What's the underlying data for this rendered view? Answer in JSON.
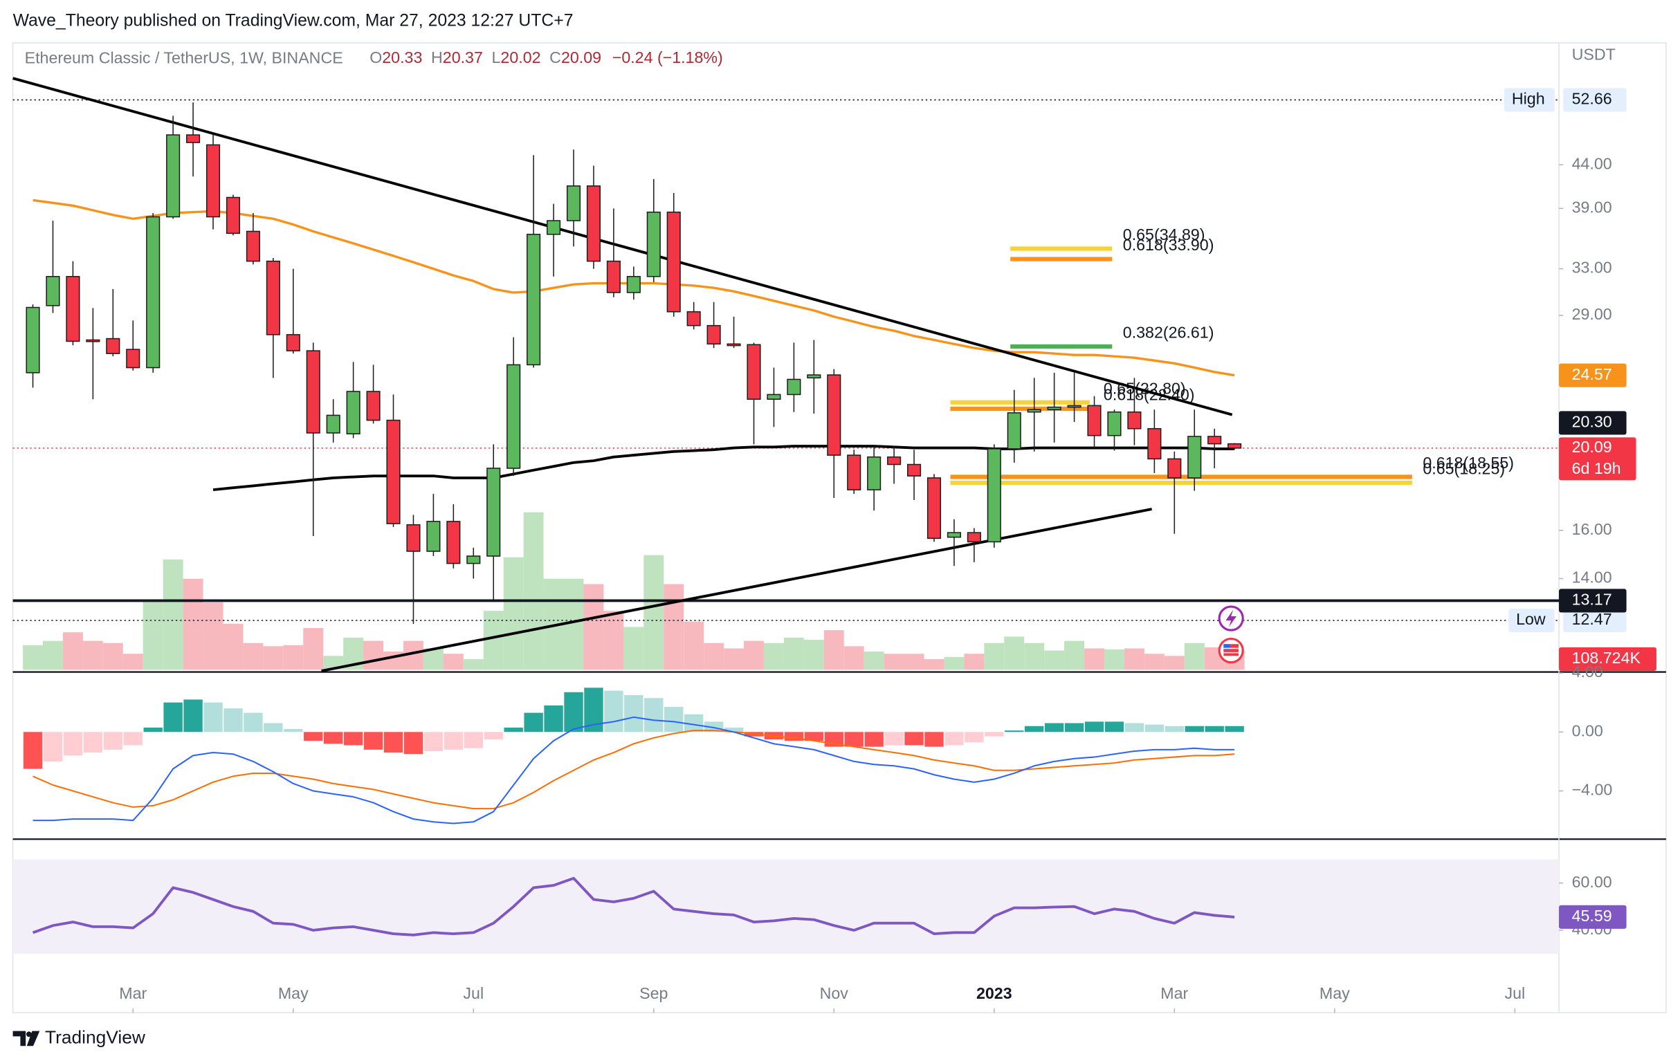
{
  "header": {
    "byline": "Wave_Theory published on TradingView.com, Mar 27, 2023 12:27 UTC+7",
    "logo": "TradingView"
  },
  "chart_data": {
    "type": "candlestick",
    "symbol": "Ethereum Classic / TetherUS, 1W, BINANCE",
    "ohlc_letters": [
      "O",
      "H",
      "L",
      "C"
    ],
    "change_label": "−0.24 (−1.18%)",
    "currency": "USDT",
    "log_scale": true,
    "ylim": [
      10.78,
      61.3
    ],
    "yticks": [
      {
        "value": 44,
        "label": "44.00"
      },
      {
        "value": 39,
        "label": "39.00"
      },
      {
        "value": 33,
        "label": "33.00"
      },
      {
        "value": 29,
        "label": "29.00"
      },
      {
        "value": 16,
        "label": "16.00"
      },
      {
        "value": 14,
        "label": "14.00"
      }
    ],
    "xlim": [
      -1,
      76.2
    ],
    "xticks": [
      {
        "value": 5,
        "label": "Mar"
      },
      {
        "value": 13,
        "label": "May"
      },
      {
        "value": 22,
        "label": "Jul"
      },
      {
        "value": 31,
        "label": "Sep"
      },
      {
        "value": 40,
        "label": "Nov"
      },
      {
        "value": 48,
        "label": "2023"
      },
      {
        "value": 57,
        "label": "Mar"
      },
      {
        "value": 65,
        "label": "May"
      },
      {
        "value": 74,
        "label": "Jul"
      }
    ],
    "up_color": "#5cb85c",
    "down_color": "#f23645",
    "candles": [
      [
        24.75,
        29.9,
        23.75,
        29.65
      ],
      [
        29.8,
        37.7,
        29.2,
        32.3
      ],
      [
        32.3,
        33.7,
        26.7,
        27.0
      ],
      [
        27.1,
        29.6,
        23.0,
        27.0
      ],
      [
        27.2,
        31.2,
        25.9,
        26.1
      ],
      [
        26.4,
        28.6,
        24.9,
        25.1
      ],
      [
        25.1,
        38.5,
        24.75,
        38.1
      ],
      [
        38.1,
        50.4,
        37.9,
        47.8
      ],
      [
        47.8,
        52.3,
        42.6,
        46.8
      ],
      [
        46.5,
        47.9,
        36.8,
        38.1
      ],
      [
        40.2,
        40.5,
        36.2,
        36.4
      ],
      [
        36.6,
        38.5,
        33.4,
        33.7
      ],
      [
        33.7,
        34.0,
        24.4,
        27.5
      ],
      [
        27.5,
        33.0,
        26.1,
        26.3
      ],
      [
        26.3,
        26.9,
        15.75,
        20.95
      ],
      [
        20.95,
        23.0,
        20.4,
        22.0
      ],
      [
        20.9,
        25.5,
        20.65,
        23.5
      ],
      [
        23.5,
        25.3,
        21.5,
        21.7
      ],
      [
        21.7,
        23.3,
        16.15,
        16.3
      ],
      [
        16.25,
        16.7,
        12.35,
        15.1
      ],
      [
        15.1,
        17.7,
        14.9,
        16.4
      ],
      [
        16.4,
        17.2,
        14.4,
        14.6
      ],
      [
        14.6,
        15.25,
        14.0,
        14.9
      ],
      [
        14.9,
        20.3,
        13.2,
        19.0
      ],
      [
        19.0,
        27.3,
        18.6,
        25.3
      ],
      [
        25.3,
        45.2,
        25.1,
        36.3
      ],
      [
        36.3,
        39.5,
        32.3,
        37.7
      ],
      [
        37.7,
        45.9,
        35.1,
        41.5
      ],
      [
        41.5,
        43.9,
        33.0,
        33.7
      ],
      [
        33.7,
        39.0,
        30.5,
        30.9
      ],
      [
        30.9,
        33.2,
        30.3,
        32.3
      ],
      [
        32.3,
        42.3,
        31.8,
        38.6
      ],
      [
        38.6,
        40.7,
        28.9,
        29.3
      ],
      [
        29.3,
        30.1,
        27.9,
        28.2
      ],
      [
        28.2,
        30.1,
        26.5,
        26.8
      ],
      [
        26.8,
        28.9,
        26.5,
        26.75
      ],
      [
        26.75,
        26.9,
        20.3,
        23.0
      ],
      [
        23.0,
        25.1,
        21.3,
        23.3
      ],
      [
        23.3,
        26.9,
        22.2,
        24.3
      ],
      [
        24.4,
        27.1,
        22.1,
        24.6
      ],
      [
        24.6,
        25.0,
        17.5,
        19.7
      ],
      [
        19.7,
        20.0,
        17.7,
        17.9
      ],
      [
        17.9,
        20.2,
        16.9,
        19.6
      ],
      [
        19.6,
        20.2,
        18.2,
        19.2
      ],
      [
        19.2,
        20.0,
        17.4,
        18.6
      ],
      [
        18.5,
        18.7,
        15.5,
        15.65
      ],
      [
        15.7,
        16.5,
        14.5,
        15.9
      ],
      [
        15.9,
        16.1,
        14.65,
        15.5
      ],
      [
        15.5,
        20.3,
        15.25,
        20.05
      ],
      [
        20.05,
        23.6,
        19.3,
        22.15
      ],
      [
        22.2,
        24.4,
        19.9,
        22.35
      ],
      [
        22.35,
        24.75,
        20.4,
        22.5
      ],
      [
        22.5,
        24.75,
        21.6,
        22.6
      ],
      [
        22.6,
        23.2,
        20.1,
        20.8
      ],
      [
        20.8,
        22.35,
        19.95,
        22.2
      ],
      [
        22.2,
        24.4,
        20.25,
        21.2
      ],
      [
        21.2,
        22.35,
        18.75,
        19.5
      ],
      [
        19.5,
        19.9,
        15.85,
        18.5
      ],
      [
        18.5,
        22.35,
        17.85,
        20.75
      ],
      [
        20.75,
        21.2,
        19.0,
        20.33
      ],
      [
        20.33,
        20.37,
        20.02,
        20.09
      ]
    ],
    "high": {
      "label": "High",
      "value": 52.66
    },
    "low": {
      "label": "Low",
      "value": 12.47
    },
    "support": 13.17,
    "trend_price": {
      "value": 20.3,
      "label": "20.30"
    },
    "countdown": "6d 19h",
    "ema": {
      "color": "#f7931a",
      "values": [
        39.9,
        39.6,
        39.3,
        38.8,
        38.3,
        37.9,
        38.2,
        38.5,
        38.6,
        38.7,
        38.5,
        38.2,
        37.9,
        37.3,
        36.6,
        36.0,
        35.4,
        34.8,
        34.2,
        33.6,
        33.0,
        32.4,
        31.9,
        31.2,
        30.9,
        31.0,
        31.3,
        31.6,
        31.7,
        31.7,
        31.7,
        31.7,
        31.6,
        31.5,
        31.3,
        31.0,
        30.6,
        30.2,
        29.8,
        29.4,
        28.9,
        28.5,
        28.1,
        27.8,
        27.4,
        27.1,
        26.8,
        26.5,
        26.3,
        26.2,
        26.2,
        26.1,
        26.0,
        26.0,
        25.9,
        25.8,
        25.6,
        25.4,
        25.1,
        24.8,
        24.57
      ]
    },
    "sma": {
      "color": "#000000",
      "values": [
        null,
        null,
        null,
        null,
        null,
        null,
        null,
        null,
        null,
        17.9,
        18.0,
        18.1,
        18.2,
        18.3,
        18.4,
        18.5,
        18.55,
        18.6,
        18.6,
        18.6,
        18.6,
        18.5,
        18.5,
        18.5,
        18.7,
        18.9,
        19.1,
        19.3,
        19.4,
        19.6,
        19.7,
        19.8,
        19.9,
        19.95,
        20.0,
        20.1,
        20.15,
        20.15,
        20.2,
        20.2,
        20.2,
        20.2,
        20.2,
        20.15,
        20.1,
        20.1,
        20.1,
        20.1,
        20.05,
        20.05,
        20.1,
        20.1,
        20.1,
        20.1,
        20.1,
        20.1,
        20.1,
        20.1,
        20.1,
        20.05,
        20.05
      ]
    },
    "fib_levels": [
      {
        "value": 34.89,
        "label": "0.65(34.89)",
        "color": "#f5d33a"
      },
      {
        "value": 33.9,
        "label": "0.618(33.90)",
        "color": "#f7931a"
      },
      {
        "value": 26.61,
        "label": "0.382(26.61)",
        "color": "#4caf50"
      },
      {
        "value": 22.8,
        "label": "0.65(22.80)",
        "color": "#f5d33a"
      },
      {
        "value": 22.4,
        "label": "0.618(22.40)",
        "color": "#f7931a"
      },
      {
        "value": 18.55,
        "label": "0.618(18.55)",
        "color": "#f7931a"
      },
      {
        "value": 18.25,
        "label": "0.65(18.25)",
        "color": "#f5d33a"
      }
    ],
    "volume": {
      "up_color": "#bfe2bf",
      "down_color": "#f8b9be",
      "last_label": "108.724K",
      "values": [
        138000,
        162000,
        210000,
        162000,
        150000,
        90000,
        390000,
        618000,
        510000,
        378000,
        258000,
        150000,
        132000,
        138000,
        234000,
        78000,
        180000,
        162000,
        102000,
        162000,
        120000,
        90000,
        60000,
        330000,
        630000,
        882000,
        510000,
        510000,
        480000,
        330000,
        240000,
        642000,
        480000,
        270000,
        150000,
        120000,
        162000,
        150000,
        180000,
        168000,
        222000,
        132000,
        102000,
        90000,
        90000,
        60000,
        72000,
        90000,
        150000,
        186000,
        150000,
        108000,
        162000,
        120000,
        114000,
        120000,
        90000,
        78000,
        150000,
        126000,
        108724
      ]
    },
    "macd": {
      "ylim": [
        -7.27,
        4.07
      ],
      "yticks": [
        {
          "value": 4,
          "label": "4.00"
        },
        {
          "value": 0,
          "label": "0.00"
        },
        {
          "value": -4,
          "label": "−4.00"
        }
      ],
      "histogram": [
        -2.5,
        -2.0,
        -1.6,
        -1.4,
        -1.2,
        -0.9,
        0.3,
        2.0,
        2.2,
        2.0,
        1.6,
        1.3,
        0.6,
        0.2,
        -0.6,
        -0.8,
        -0.9,
        -1.2,
        -1.4,
        -1.5,
        -1.3,
        -1.2,
        -1.1,
        -0.5,
        0.3,
        1.3,
        1.8,
        2.7,
        3.0,
        2.8,
        2.5,
        2.3,
        1.7,
        1.2,
        0.7,
        0.3,
        -0.3,
        -0.5,
        -0.6,
        -0.6,
        -1.0,
        -1.0,
        -1.0,
        -0.9,
        -0.9,
        -1.0,
        -0.9,
        -0.7,
        -0.3,
        0.1,
        0.4,
        0.6,
        0.6,
        0.7,
        0.7,
        0.6,
        0.5,
        0.4,
        0.4,
        0.4,
        0.4
      ],
      "macd": {
        "color": "#2962ff",
        "values": [
          -6.0,
          -6.0,
          -5.9,
          -5.9,
          -5.9,
          -6.0,
          -4.5,
          -2.5,
          -1.6,
          -1.4,
          -1.5,
          -2.0,
          -2.7,
          -3.5,
          -4.0,
          -4.2,
          -4.4,
          -4.8,
          -5.4,
          -5.9,
          -6.1,
          -6.2,
          -6.1,
          -5.4,
          -3.6,
          -1.8,
          -0.6,
          0.2,
          0.5,
          0.7,
          1.0,
          0.8,
          0.7,
          0.5,
          0.3,
          0.0,
          -0.4,
          -0.8,
          -1.0,
          -1.2,
          -1.6,
          -2.0,
          -2.2,
          -2.3,
          -2.5,
          -2.9,
          -3.2,
          -3.4,
          -3.2,
          -2.8,
          -2.3,
          -2.0,
          -1.8,
          -1.7,
          -1.5,
          -1.3,
          -1.2,
          -1.2,
          -1.1,
          -1.2,
          -1.2
        ]
      },
      "signal": {
        "color": "#ff6d00",
        "values": [
          -3.0,
          -3.6,
          -4.0,
          -4.4,
          -4.8,
          -5.1,
          -5.0,
          -4.6,
          -4.0,
          -3.4,
          -3.0,
          -2.8,
          -2.8,
          -3.0,
          -3.2,
          -3.5,
          -3.7,
          -3.9,
          -4.2,
          -4.5,
          -4.8,
          -5.0,
          -5.2,
          -5.2,
          -4.8,
          -4.1,
          -3.3,
          -2.6,
          -1.9,
          -1.4,
          -0.8,
          -0.4,
          -0.1,
          0.1,
          0.1,
          0.0,
          -0.1,
          -0.3,
          -0.4,
          -0.6,
          -0.8,
          -1.0,
          -1.2,
          -1.4,
          -1.6,
          -1.9,
          -2.1,
          -2.3,
          -2.6,
          -2.6,
          -2.5,
          -2.4,
          -2.3,
          -2.2,
          -2.1,
          -1.9,
          -1.8,
          -1.7,
          -1.6,
          -1.6,
          -1.5
        ]
      }
    },
    "rsi": {
      "ylim": [
        20.9,
        78.6
      ],
      "band": [
        30,
        70
      ],
      "color": "#7e57c2",
      "yticks": [
        {
          "value": 60,
          "label": "60.00"
        },
        {
          "value": 40,
          "label": "40.00"
        }
      ],
      "values": [
        39,
        42,
        43.5,
        41.5,
        41.5,
        41,
        47,
        58,
        56,
        53,
        50,
        48,
        43,
        42.5,
        40,
        41,
        41.5,
        40,
        38.5,
        38,
        39,
        38.5,
        39,
        43,
        50,
        58,
        59,
        62,
        53,
        52,
        53.5,
        56.5,
        49,
        48,
        47,
        46.5,
        43.5,
        44,
        45,
        44.5,
        42,
        40,
        43,
        43,
        43,
        38.5,
        39,
        39,
        46,
        49.5,
        49.5,
        49.8,
        50,
        47,
        49,
        48,
        45,
        43,
        47.5,
        46.3,
        45.59
      ]
    }
  }
}
